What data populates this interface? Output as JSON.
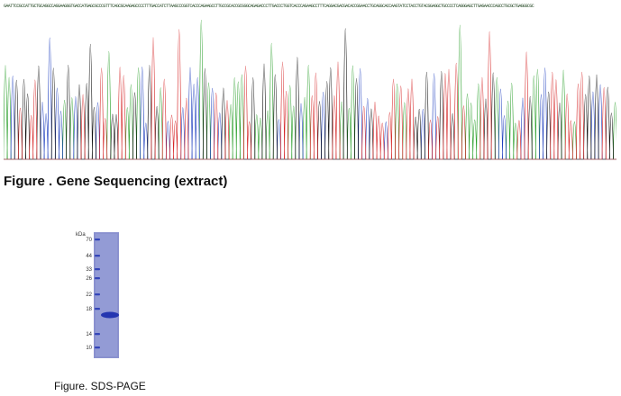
{
  "sequencing": {
    "sequence_strip": "GAATTCCGCCATTGCTGCAGGCCAGGAAGGGTGACCATGAGCGCCCGTTTCAGCGCAAGAGCCCCTTTGACCATCTTAAGCCCGGTCACCCAGAAGCCTTGCCGCACCGCGGGCAGAGACCCTTGACCCTGGTCACCCAGAAGCCTTTCAGGACGACGACACCGGAACCTGCAGGCACCAAGTATCCTACCTGTACGGAGGCTGCCCCTCAGGGAGCTTGAGAACCCAGCCTGCGCTGAGGGCGC",
    "caption": "Figure . Gene Sequencing (extract)",
    "colors": {
      "A": "#2ca02c",
      "C": "#1f3fbf",
      "G": "#111111",
      "T": "#d62728"
    }
  },
  "sds_page": {
    "unit_label": "kDa",
    "markers": [
      "70",
      "44",
      "33",
      "26",
      "22",
      "18",
      "14",
      "10"
    ],
    "caption": "Figure. SDS-PAGE",
    "lane_color": "#7f86c9",
    "band_color": "#2436b0"
  }
}
